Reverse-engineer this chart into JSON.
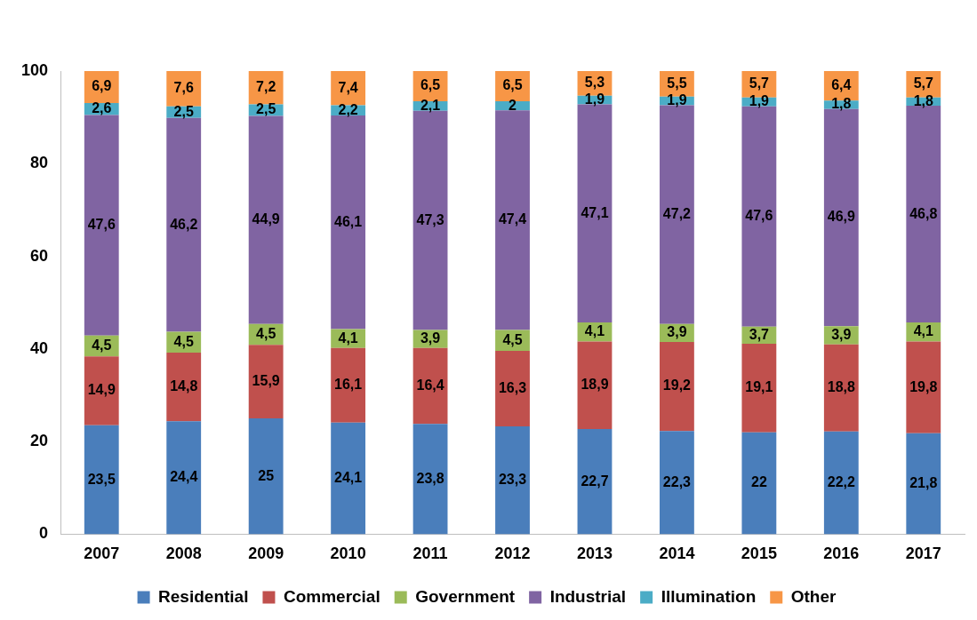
{
  "chart_data": {
    "type": "bar",
    "stacked": true,
    "legend": "bottom",
    "grid": false,
    "categories": [
      "2007",
      "2008",
      "2009",
      "2010",
      "2011",
      "2012",
      "2013",
      "2014",
      "2015",
      "2016",
      "2017"
    ],
    "ylim": [
      0,
      100
    ],
    "yticks": [
      0,
      20,
      40,
      60,
      80,
      100
    ],
    "series": [
      {
        "name": "Residential",
        "color": "#4a7ebb",
        "values": [
          23.5,
          24.4,
          25,
          24.1,
          23.8,
          23.3,
          22.7,
          22.3,
          22,
          22.2,
          21.8
        ],
        "value_labels": [
          "23,5",
          "24,4",
          "25",
          "24,1",
          "23,8",
          "23,3",
          "22,7",
          "22,3",
          "22",
          "22,2",
          "21,8"
        ]
      },
      {
        "name": "Commercial",
        "color": "#c0504d",
        "values": [
          14.9,
          14.8,
          15.9,
          16.1,
          16.4,
          16.3,
          18.9,
          19.2,
          19.1,
          18.8,
          19.8
        ],
        "value_labels": [
          "14,9",
          "14,8",
          "15,9",
          "16,1",
          "16,4",
          "16,3",
          "18,9",
          "19,2",
          "19,1",
          "18,8",
          "19,8"
        ]
      },
      {
        "name": "Government",
        "color": "#9bbb59",
        "values": [
          4.5,
          4.5,
          4.5,
          4.1,
          3.9,
          4.5,
          4.1,
          3.9,
          3.7,
          3.9,
          4.1
        ],
        "value_labels": [
          "4,5",
          "4,5",
          "4,5",
          "4,1",
          "3,9",
          "4,5",
          "4,1",
          "3,9",
          "3,7",
          "3,9",
          "4,1"
        ]
      },
      {
        "name": "Industrial",
        "color": "#8064a2",
        "values": [
          47.6,
          46.2,
          44.9,
          46.1,
          47.3,
          47.4,
          47.1,
          47.2,
          47.6,
          46.9,
          46.8
        ],
        "value_labels": [
          "47,6",
          "46,2",
          "44,9",
          "46,1",
          "47,3",
          "47,4",
          "47,1",
          "47,2",
          "47,6",
          "46,9",
          "46,8"
        ]
      },
      {
        "name": "Illumination",
        "color": "#4bacc6",
        "values": [
          2.6,
          2.5,
          2.5,
          2.2,
          2.1,
          2,
          1.9,
          1.9,
          1.9,
          1.8,
          1.8
        ],
        "value_labels": [
          "2,6",
          "2,5",
          "2,5",
          "2,2",
          "2,1",
          "2",
          "1,9",
          "1,9",
          "1,9",
          "1,8",
          "1,8"
        ]
      },
      {
        "name": "Other",
        "color": "#f79646",
        "values": [
          6.9,
          7.6,
          7.2,
          7.4,
          6.5,
          6.5,
          5.3,
          5.5,
          5.7,
          6.4,
          5.7
        ],
        "value_labels": [
          "6,9",
          "7,6",
          "7,2",
          "7,4",
          "6,5",
          "6,5",
          "5,3",
          "5,5",
          "5,7",
          "6,4",
          "5,7"
        ]
      }
    ]
  }
}
